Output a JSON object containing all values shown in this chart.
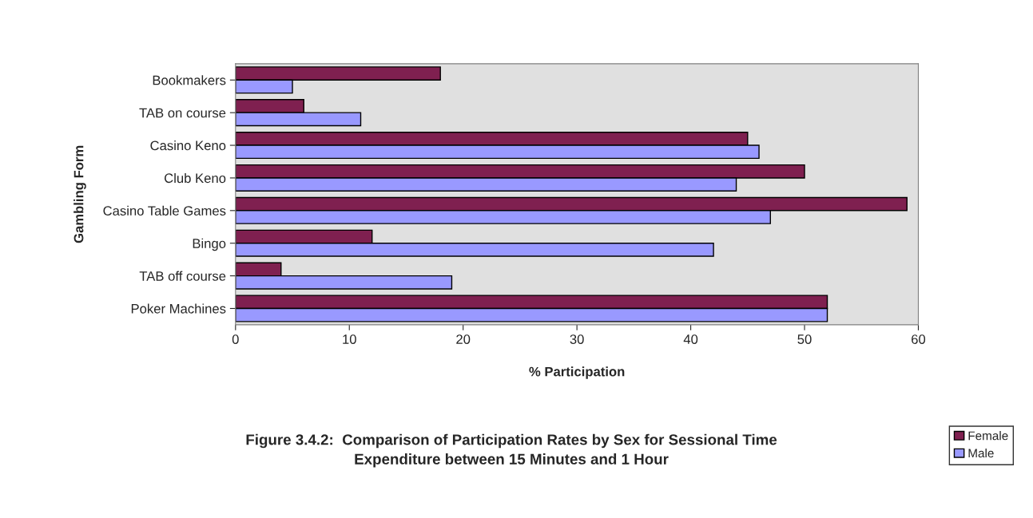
{
  "chart_data": {
    "type": "bar",
    "orientation": "horizontal",
    "title": "Figure 3.4.2:  Comparison of Participation Rates by Sex for Sessional Time\nExpenditure between 15 Minutes and 1 Hour",
    "xlabel": "% Participation",
    "ylabel": "Gambling Form",
    "categories": [
      "Bookmakers",
      "TAB on course",
      "Casino Keno",
      "Club Keno",
      "Casino Table Games",
      "Bingo",
      "TAB off course",
      "Poker Machines"
    ],
    "series": [
      {
        "name": "Female",
        "color": "#7f2050",
        "values": [
          18,
          6,
          45,
          50,
          59,
          12,
          4,
          52
        ]
      },
      {
        "name": "Male",
        "color": "#9999ff",
        "values": [
          5,
          11,
          46,
          44,
          47,
          42,
          19,
          52
        ]
      }
    ],
    "xlim": [
      0,
      60
    ],
    "xticks": [
      0,
      10,
      20,
      30,
      40,
      50,
      60
    ],
    "grid": false,
    "legend": "bottom right"
  }
}
